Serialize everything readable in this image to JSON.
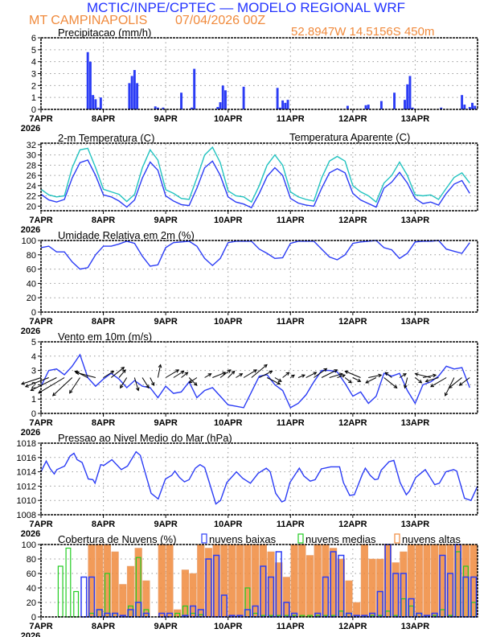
{
  "header": {
    "title": "MCTIC/INPE/CPTEC — MODELO REGIONAL WRF",
    "location": "MT CAMPINAPOLIS",
    "run": "07/04/2026 00Z",
    "coords": "52.8947W 14.5156S 450m"
  },
  "colors": {
    "title": "#2233ff",
    "orange": "#f08a3c",
    "blue": "#2b3cf5",
    "cyan": "#22c3c0",
    "green": "#22cc22"
  },
  "x_axis": {
    "labels": [
      "7APR",
      "8APR",
      "9APR",
      "10APR",
      "11APR",
      "12APR",
      "13APR"
    ],
    "year": "2026",
    "range_hours": [
      0,
      168
    ]
  },
  "chart_data": [
    {
      "type": "bar",
      "title": "Precipitacao (mm/h)",
      "ylim": [
        0,
        6
      ],
      "yticks": [
        "0",
        "1",
        "2",
        "3",
        "4",
        "5",
        "6"
      ],
      "grid": true,
      "hours": [
        18,
        19,
        20,
        21,
        22,
        23,
        34,
        35,
        36,
        37,
        44,
        45,
        47,
        54,
        58,
        59,
        68,
        69,
        70,
        71,
        78,
        91,
        92,
        93,
        94,
        95,
        118,
        125,
        126,
        131,
        136,
        140,
        141,
        142,
        143,
        154,
        162,
        163,
        165,
        166,
        167
      ],
      "values": [
        4.8,
        4.0,
        1.2,
        0.85,
        0.15,
        1.0,
        2.2,
        2.8,
        3.3,
        2.2,
        0.25,
        0.15,
        0.15,
        1.4,
        0.15,
        3.4,
        0.2,
        0.6,
        2.0,
        1.6,
        1.9,
        1.8,
        0.15,
        0.75,
        0.55,
        0.8,
        0.3,
        0.35,
        0.4,
        0.7,
        1.4,
        0.8,
        2.1,
        2.8,
        0.15,
        0.15,
        1.2,
        0.4,
        0.2,
        0.55,
        0.3
      ]
    },
    {
      "type": "line",
      "title": "2-m Temperatura (C)",
      "ylim": [
        19.1,
        32.3
      ],
      "yticks": [
        "20",
        "22",
        "24",
        "26",
        "28",
        "30",
        "32"
      ],
      "grid": true,
      "step_hours": 3,
      "series": [
        {
          "name": "Temperatura Aparente (C)",
          "color": "#22c3c0",
          "values": [
            23.3,
            22.2,
            21.8,
            22.0,
            27.5,
            31.0,
            31.3,
            27.5,
            23.3,
            22.8,
            22.3,
            20.9,
            22.3,
            27.5,
            31.0,
            29.0,
            23.2,
            22.5,
            21.5,
            21.3,
            25.5,
            30.0,
            31.5,
            28.5,
            23.0,
            22.0,
            21.8,
            20.8,
            24.0,
            28.0,
            30.0,
            28.0,
            22.8,
            21.8,
            21.3,
            21.0,
            25.5,
            28.8,
            29.7,
            28.8,
            24.0,
            22.8,
            22.0,
            20.8,
            24.5,
            26.0,
            28.6,
            26.0,
            22.2,
            22.0,
            22.2,
            21.3,
            23.5,
            25.6,
            26.5,
            24.5
          ]
        },
        {
          "color": "#2b3cf5",
          "values": [
            22.3,
            21.2,
            20.8,
            21.3,
            25.5,
            28.5,
            29.0,
            26.0,
            22.2,
            21.8,
            21.0,
            19.8,
            21.2,
            25.5,
            28.6,
            27.0,
            22.0,
            21.0,
            20.3,
            20.1,
            23.5,
            27.5,
            28.8,
            26.0,
            21.8,
            20.8,
            20.4,
            19.7,
            22.5,
            25.8,
            27.5,
            26.0,
            21.5,
            20.6,
            20.2,
            20.0,
            23.5,
            26.5,
            27.3,
            26.5,
            22.5,
            21.2,
            20.5,
            19.8,
            23.5,
            24.7,
            26.6,
            24.5,
            21.5,
            20.5,
            20.8,
            20.2,
            22.5,
            24.3,
            25.0,
            22.5
          ]
        }
      ]
    },
    {
      "type": "line",
      "title": "Umidade Relativa em 2m (%)",
      "ylim": [
        0,
        100
      ],
      "yticks": [
        "0",
        "20",
        "40",
        "60",
        "80",
        "100"
      ],
      "grid": true,
      "step_hours": 3,
      "series": [
        {
          "color": "#2b3cf5",
          "values": [
            90,
            92,
            84,
            84,
            70,
            60,
            62,
            80,
            92,
            92,
            95,
            99,
            96,
            78,
            64,
            66,
            90,
            97,
            98,
            99,
            92,
            75,
            65,
            75,
            97,
            99,
            99,
            99,
            88,
            82,
            75,
            76,
            96,
            99,
            99,
            99,
            88,
            77,
            73,
            80,
            96,
            98,
            99,
            100,
            90,
            87,
            75,
            82,
            98,
            99,
            99,
            100,
            88,
            85,
            82,
            97
          ]
        }
      ]
    },
    {
      "type": "line",
      "title": "Vento em 10m (m/s)",
      "ylim": [
        0,
        5
      ],
      "yticks": [
        "0",
        "1",
        "2",
        "3",
        "4",
        "5"
      ],
      "grid": true,
      "step_hours": 3,
      "vector_baseline": 2.5,
      "series": [
        {
          "color": "#2b3cf5",
          "values": [
            1.9,
            3.0,
            3.1,
            2.7,
            3.3,
            4.1,
            2.5,
            1.9,
            2.4,
            2.8,
            2.4,
            1.8,
            2.3,
            1.9,
            1.8,
            1.1,
            1.9,
            1.4,
            1.5,
            2.2,
            1.1,
            1.6,
            1.8,
            1.2,
            0.6,
            0.5,
            0.4,
            1.5,
            2.6,
            2.7,
            2.0,
            1.6,
            0.4,
            0.7,
            1.3,
            2.2,
            3.0,
            3.0,
            2.9,
            2.1,
            1.2,
            1.5,
            0.7,
            1.2,
            2.8,
            2.6,
            2.8,
            1.6,
            0.7,
            2.0,
            2.2,
            2.6,
            3.3,
            3.1,
            3.2,
            1.8
          ]
        }
      ],
      "wind_u": [
        -1.5,
        -1.8,
        -2,
        -2,
        -1.5,
        -0.8,
        -1,
        -1.5,
        0.8,
        1,
        0.5,
        -0.5,
        0.3,
        0.5,
        0.3,
        0.2,
        1,
        0.8,
        0.5,
        0.6,
        -0.6,
        0.5,
        1,
        0.8,
        0.5,
        0.5,
        1,
        1.2,
        1,
        1,
        0.5,
        0.5,
        0.3,
        0.5,
        0.8,
        1,
        1.2,
        1,
        0.6,
        0.5,
        0.6,
        -1.2,
        1,
        -0.8,
        1,
        -0.5,
        0.5,
        -0.2,
        0.5,
        1,
        -1.2,
        -1,
        -1.2,
        -0.7,
        -1,
        -0.8
      ],
      "wind_v": [
        -0.5,
        -0.7,
        -1,
        -1.2,
        -1.4,
        -1.2,
        0.5,
        0.4,
        0.5,
        0.8,
        0.6,
        -0.8,
        -1,
        -0.8,
        -0.6,
        1.0,
        0.6,
        0.5,
        0.4,
        -0.6,
        -0.4,
        0.3,
        0.4,
        0.6,
        0.5,
        0.3,
        0.6,
        1.0,
        0.5,
        -0.5,
        -0.3,
        0.4,
        0.2,
        0.2,
        0.4,
        0.7,
        0.6,
        0.3,
        0.2,
        -0.4,
        -0.3,
        0.5,
        0.2,
        -0.4,
        -0.8,
        0.4,
        0.3,
        -0.8,
        -0.4,
        0.2,
        0.3,
        -0.3,
        -0.7,
        -1.4,
        -0.8,
        -0.6
      ]
    },
    {
      "type": "line",
      "title": "Pressao ao Nivel Medio do Mar (hPa)",
      "ylim": [
        1008,
        1018
      ],
      "yticks": [
        "1008",
        "1010",
        "1012",
        "1014",
        "1016",
        "1018"
      ],
      "grid": true,
      "series": [
        {
          "color": "#2b3cf5",
          "hours": [
            0,
            2,
            3.6,
            5.1,
            6.1,
            9.1,
            11.2,
            12.7,
            13.9,
            15.8,
            18.2,
            20,
            20.8,
            23,
            24.2,
            27.3,
            30.9,
            33.3,
            36.6,
            38.2,
            40,
            42.4,
            45.1,
            47.9,
            50.3,
            51.5,
            53.3,
            55.2,
            57,
            59.4,
            61.2,
            63,
            64.8,
            67.3,
            69.1,
            71.5,
            75.2,
            77.6,
            80.6,
            83.6,
            86.7,
            88.2,
            90.3,
            92.7,
            93.9,
            95.8,
            99.4,
            101.2,
            103.6,
            105.5,
            107.9,
            111.5,
            114.9,
            116.4,
            118.8,
            120.6,
            123.6,
            124.8,
            126.7,
            128.5,
            129.7,
            130.9,
            133.9,
            135.8,
            138.2,
            140.6,
            141.8,
            144.2,
            147.9,
            151.5,
            153.3,
            155.8,
            158.8,
            160,
            163,
            165.5,
            168
          ],
          "values": [
            1014,
            1015.5,
            1014.4,
            1013.7,
            1014.3,
            1014.8,
            1016.2,
            1016.6,
            1015.7,
            1015.3,
            1013,
            1012.9,
            1012.4,
            1015,
            1014.9,
            1015.7,
            1014.3,
            1014.8,
            1016.8,
            1016.3,
            1014,
            1011,
            1010.2,
            1013,
            1013.5,
            1014.1,
            1013.2,
            1012.6,
            1012.9,
            1014.5,
            1015,
            1014.6,
            1012.5,
            1009.5,
            1010,
            1012.5,
            1014,
            1013.1,
            1012.4,
            1013.8,
            1014.5,
            1014,
            1011,
            1009.8,
            1010,
            1012.5,
            1014.5,
            1013.4,
            1012.7,
            1012.9,
            1014.4,
            1014.7,
            1014.7,
            1012.5,
            1010.7,
            1010.8,
            1013.6,
            1014.5,
            1013.5,
            1012.9,
            1013,
            1014.2,
            1015.4,
            1015.6,
            1012.5,
            1010.8,
            1011.3,
            1013.2,
            1014.3,
            1012.2,
            1012.4,
            1014,
            1014.3,
            1014.1,
            1010.3,
            1010,
            1012
          ]
        }
      ]
    },
    {
      "type": "bar",
      "title": "Cobertura de Nuvens (%)",
      "ylim": [
        0,
        100
      ],
      "yticks": [
        "0",
        "20",
        "40",
        "60",
        "80",
        "100"
      ],
      "grid": true,
      "step_hours": 3,
      "legend": "top",
      "series": [
        {
          "name": "nuvens altas",
          "color": "#f08a3c",
          "values": [
            0,
            0,
            0,
            0,
            0,
            0,
            100,
            100,
            100,
            90,
            45,
            70,
            95,
            50,
            0,
            100,
            100,
            10,
            65,
            60,
            100,
            95,
            100,
            100,
            100,
            100,
            100,
            100,
            100,
            90,
            75,
            55,
            100,
            100,
            85,
            100,
            100,
            95,
            80,
            50,
            20,
            100,
            80,
            80,
            100,
            75,
            90,
            100,
            100,
            100,
            100,
            100,
            100,
            100,
            100,
            100
          ]
        },
        {
          "name": "nuvens medias",
          "color": "#22cc22",
          "values": [
            0,
            0,
            70,
            95,
            35,
            0,
            5,
            10,
            60,
            5,
            0,
            15,
            82,
            10,
            0,
            0,
            0,
            5,
            15,
            5,
            3,
            0,
            0,
            0,
            0,
            0,
            40,
            5,
            2,
            2,
            2,
            2,
            2,
            2,
            2,
            2,
            2,
            2,
            8,
            5,
            2,
            2,
            2,
            2,
            8,
            2,
            25,
            15,
            5,
            2,
            2,
            10,
            2,
            90,
            70,
            20
          ]
        },
        {
          "name": "nuvens baixas",
          "color": "#2b3cf5",
          "values": [
            0,
            0,
            0,
            0,
            0,
            55,
            55,
            10,
            5,
            5,
            2,
            10,
            20,
            5,
            0,
            5,
            5,
            0,
            2,
            15,
            10,
            80,
            85,
            30,
            2,
            2,
            10,
            15,
            70,
            55,
            90,
            20,
            5,
            0,
            0,
            5,
            55,
            90,
            85,
            5,
            2,
            2,
            5,
            35,
            100,
            60,
            60,
            25,
            5,
            2,
            5,
            85,
            60,
            100,
            55,
            55
          ]
        }
      ]
    }
  ]
}
